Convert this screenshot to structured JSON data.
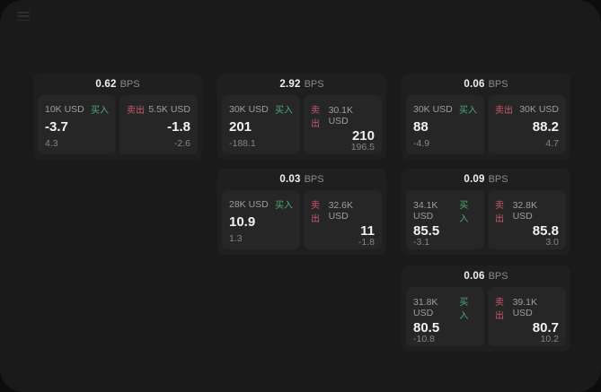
{
  "menu": {
    "icon": "hamburger-menu-icon"
  },
  "cards": [
    {
      "row": 0,
      "col": 0,
      "bps": "0.62",
      "unit": "BPS",
      "buy": {
        "amount": "10K USD",
        "label": "买入",
        "value": "-3.7",
        "sub": "4.3"
      },
      "sell": {
        "label": "卖出",
        "amount": "5.5K USD",
        "value": "-1.8",
        "sub": "-2.6"
      }
    },
    {
      "row": 0,
      "col": 1,
      "bps": "2.92",
      "unit": "BPS",
      "buy": {
        "amount": "30K USD",
        "label": "买入",
        "value": "201",
        "sub": "-188.1"
      },
      "sell": {
        "label": "卖出",
        "amount": "30.1K USD",
        "value": "210",
        "sub": "196.5"
      }
    },
    {
      "row": 0,
      "col": 2,
      "bps": "0.06",
      "unit": "BPS",
      "buy": {
        "amount": "30K USD",
        "label": "买入",
        "value": "88",
        "sub": "-4.9"
      },
      "sell": {
        "label": "卖出",
        "amount": "30K USD",
        "value": "88.2",
        "sub": "4.7"
      }
    },
    {
      "row": 1,
      "col": 1,
      "bps": "0.03",
      "unit": "BPS",
      "buy": {
        "amount": "28K USD",
        "label": "买入",
        "value": "10.9",
        "sub": "1.3"
      },
      "sell": {
        "label": "卖出",
        "amount": "32.6K USD",
        "value": "11",
        "sub": "-1.8"
      }
    },
    {
      "row": 1,
      "col": 2,
      "bps": "0.09",
      "unit": "BPS",
      "buy": {
        "amount": "34.1K USD",
        "label": "买入",
        "value": "85.5",
        "sub": "-3.1"
      },
      "sell": {
        "label": "卖出",
        "amount": "32.8K USD",
        "value": "85.8",
        "sub": "3.0"
      }
    },
    {
      "row": 2,
      "col": 2,
      "bps": "0.06",
      "unit": "BPS",
      "buy": {
        "amount": "31.8K USD",
        "label": "买入",
        "value": "80.5",
        "sub": "-10.8"
      },
      "sell": {
        "label": "卖出",
        "amount": "39.1K USD",
        "value": "80.7",
        "sub": "10.2"
      }
    }
  ],
  "colors": {
    "buy": "#4aac72",
    "sell": "#c95a6b",
    "window_bg": "#1a1a1a",
    "outer_bg": "#0d0d0d",
    "card_bg": "#1f1f1f",
    "panel_bg": "#262626",
    "value_text": "#f2f2f2",
    "muted_text": "#9e9e9e"
  }
}
